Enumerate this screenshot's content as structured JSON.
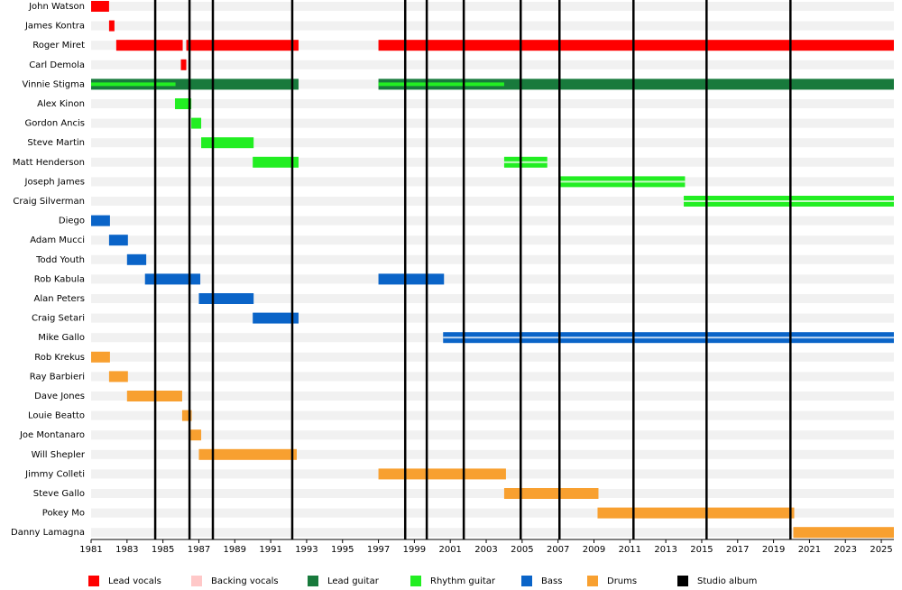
{
  "chart_data": {
    "type": "timeline",
    "categories": [
      "John Watson",
      "James Kontra",
      "Roger Miret",
      "Carl Demola",
      "Vinnie Stigma",
      "Alex Kinon",
      "Gordon Ancis",
      "Steve Martin",
      "Matt Henderson",
      "Joseph James",
      "Craig Silverman",
      "Diego",
      "Adam Mucci",
      "Todd Youth",
      "Rob Kabula",
      "Alan Peters",
      "Craig Setari",
      "Mike Gallo",
      "Rob Krekus",
      "Ray Barbieri",
      "Dave Jones",
      "Louie Beatto",
      "Joe Montanaro",
      "Will Shepler",
      "Jimmy Colleti",
      "Steve Gallo",
      "Pokey Mo",
      "Danny Lamagna"
    ],
    "xlim": [
      1981,
      2025.7
    ],
    "xticks": [
      1981,
      1983,
      1985,
      1987,
      1989,
      1991,
      1993,
      1995,
      1997,
      1999,
      2001,
      2003,
      2005,
      2007,
      2009,
      2011,
      2013,
      2015,
      2017,
      2019,
      2021,
      2023,
      2025
    ],
    "series": [
      {
        "name": "Lead vocals",
        "color": "#ff0000",
        "bars": [
          {
            "row": 0,
            "start": 1981.0,
            "end": 1982.0
          },
          {
            "row": 1,
            "start": 1982.0,
            "end": 1982.3
          },
          {
            "row": 2,
            "start": 1982.4,
            "end": 1986.1
          },
          {
            "row": 2,
            "start": 1986.3,
            "end": 1992.55
          },
          {
            "row": 2,
            "start": 1997.0,
            "end": 2025.7
          },
          {
            "row": 3,
            "start": 1986.0,
            "end": 1986.3
          }
        ]
      },
      {
        "name": "Backing vocals",
        "color": "#ffc8c8",
        "bars": []
      },
      {
        "name": "Lead guitar",
        "color": "#187a3c",
        "bars": [
          {
            "row": 4,
            "start": 1981.0,
            "end": 1992.55
          },
          {
            "row": 4,
            "start": 1997.0,
            "end": 2025.7
          }
        ]
      },
      {
        "name": "Rhythm guitar",
        "color": "#22ee22",
        "bars": [
          {
            "row": 4,
            "start": 1981.0,
            "end": 1985.7,
            "inner": true
          },
          {
            "row": 4,
            "start": 1997.0,
            "end": 2004.0,
            "inner": true
          },
          {
            "row": 5,
            "start": 1985.67,
            "end": 1986.58
          },
          {
            "row": 6,
            "start": 1986.58,
            "end": 1987.13
          },
          {
            "row": 7,
            "start": 1987.13,
            "end": 1990.05
          },
          {
            "row": 8,
            "start": 1990.0,
            "end": 1992.55
          },
          {
            "row": 8,
            "start": 2004.0,
            "end": 2006.4,
            "split": true
          },
          {
            "row": 9,
            "start": 2007.03,
            "end": 2014.07,
            "split": true
          },
          {
            "row": 10,
            "start": 2014.0,
            "end": 2025.7,
            "split": true
          }
        ]
      },
      {
        "name": "Bass",
        "color": "#0a64c8",
        "bars": [
          {
            "row": 11,
            "start": 1981.0,
            "end": 1982.05
          },
          {
            "row": 12,
            "start": 1982.0,
            "end": 1983.05
          },
          {
            "row": 13,
            "start": 1983.0,
            "end": 1984.07
          },
          {
            "row": 14,
            "start": 1984.0,
            "end": 1987.08
          },
          {
            "row": 14,
            "start": 1997.0,
            "end": 2000.65
          },
          {
            "row": 15,
            "start": 1987.0,
            "end": 1990.05
          },
          {
            "row": 16,
            "start": 1990.0,
            "end": 1992.55
          },
          {
            "row": 17,
            "start": 2000.6,
            "end": 2025.7,
            "split": true
          }
        ]
      },
      {
        "name": "Drums",
        "color": "#f8a030",
        "bars": [
          {
            "row": 18,
            "start": 1981.0,
            "end": 1982.05
          },
          {
            "row": 19,
            "start": 1982.0,
            "end": 1983.05
          },
          {
            "row": 20,
            "start": 1983.0,
            "end": 1986.07
          },
          {
            "row": 21,
            "start": 1986.07,
            "end": 1986.6
          },
          {
            "row": 22,
            "start": 1986.5,
            "end": 1987.13
          },
          {
            "row": 23,
            "start": 1987.0,
            "end": 1992.45
          },
          {
            "row": 24,
            "start": 1997.0,
            "end": 2004.1
          },
          {
            "row": 25,
            "start": 2004.0,
            "end": 2009.25
          },
          {
            "row": 26,
            "start": 2009.2,
            "end": 2020.15
          },
          {
            "row": 27,
            "start": 2020.1,
            "end": 2025.7
          }
        ]
      },
      {
        "name": "Studio album",
        "color": "#000000",
        "dates": [
          1984.57,
          1986.48,
          1987.78,
          1992.2,
          1998.49,
          1999.69,
          2001.75,
          2004.92,
          2007.08,
          2011.2,
          2015.27,
          2019.94
        ]
      }
    ]
  }
}
